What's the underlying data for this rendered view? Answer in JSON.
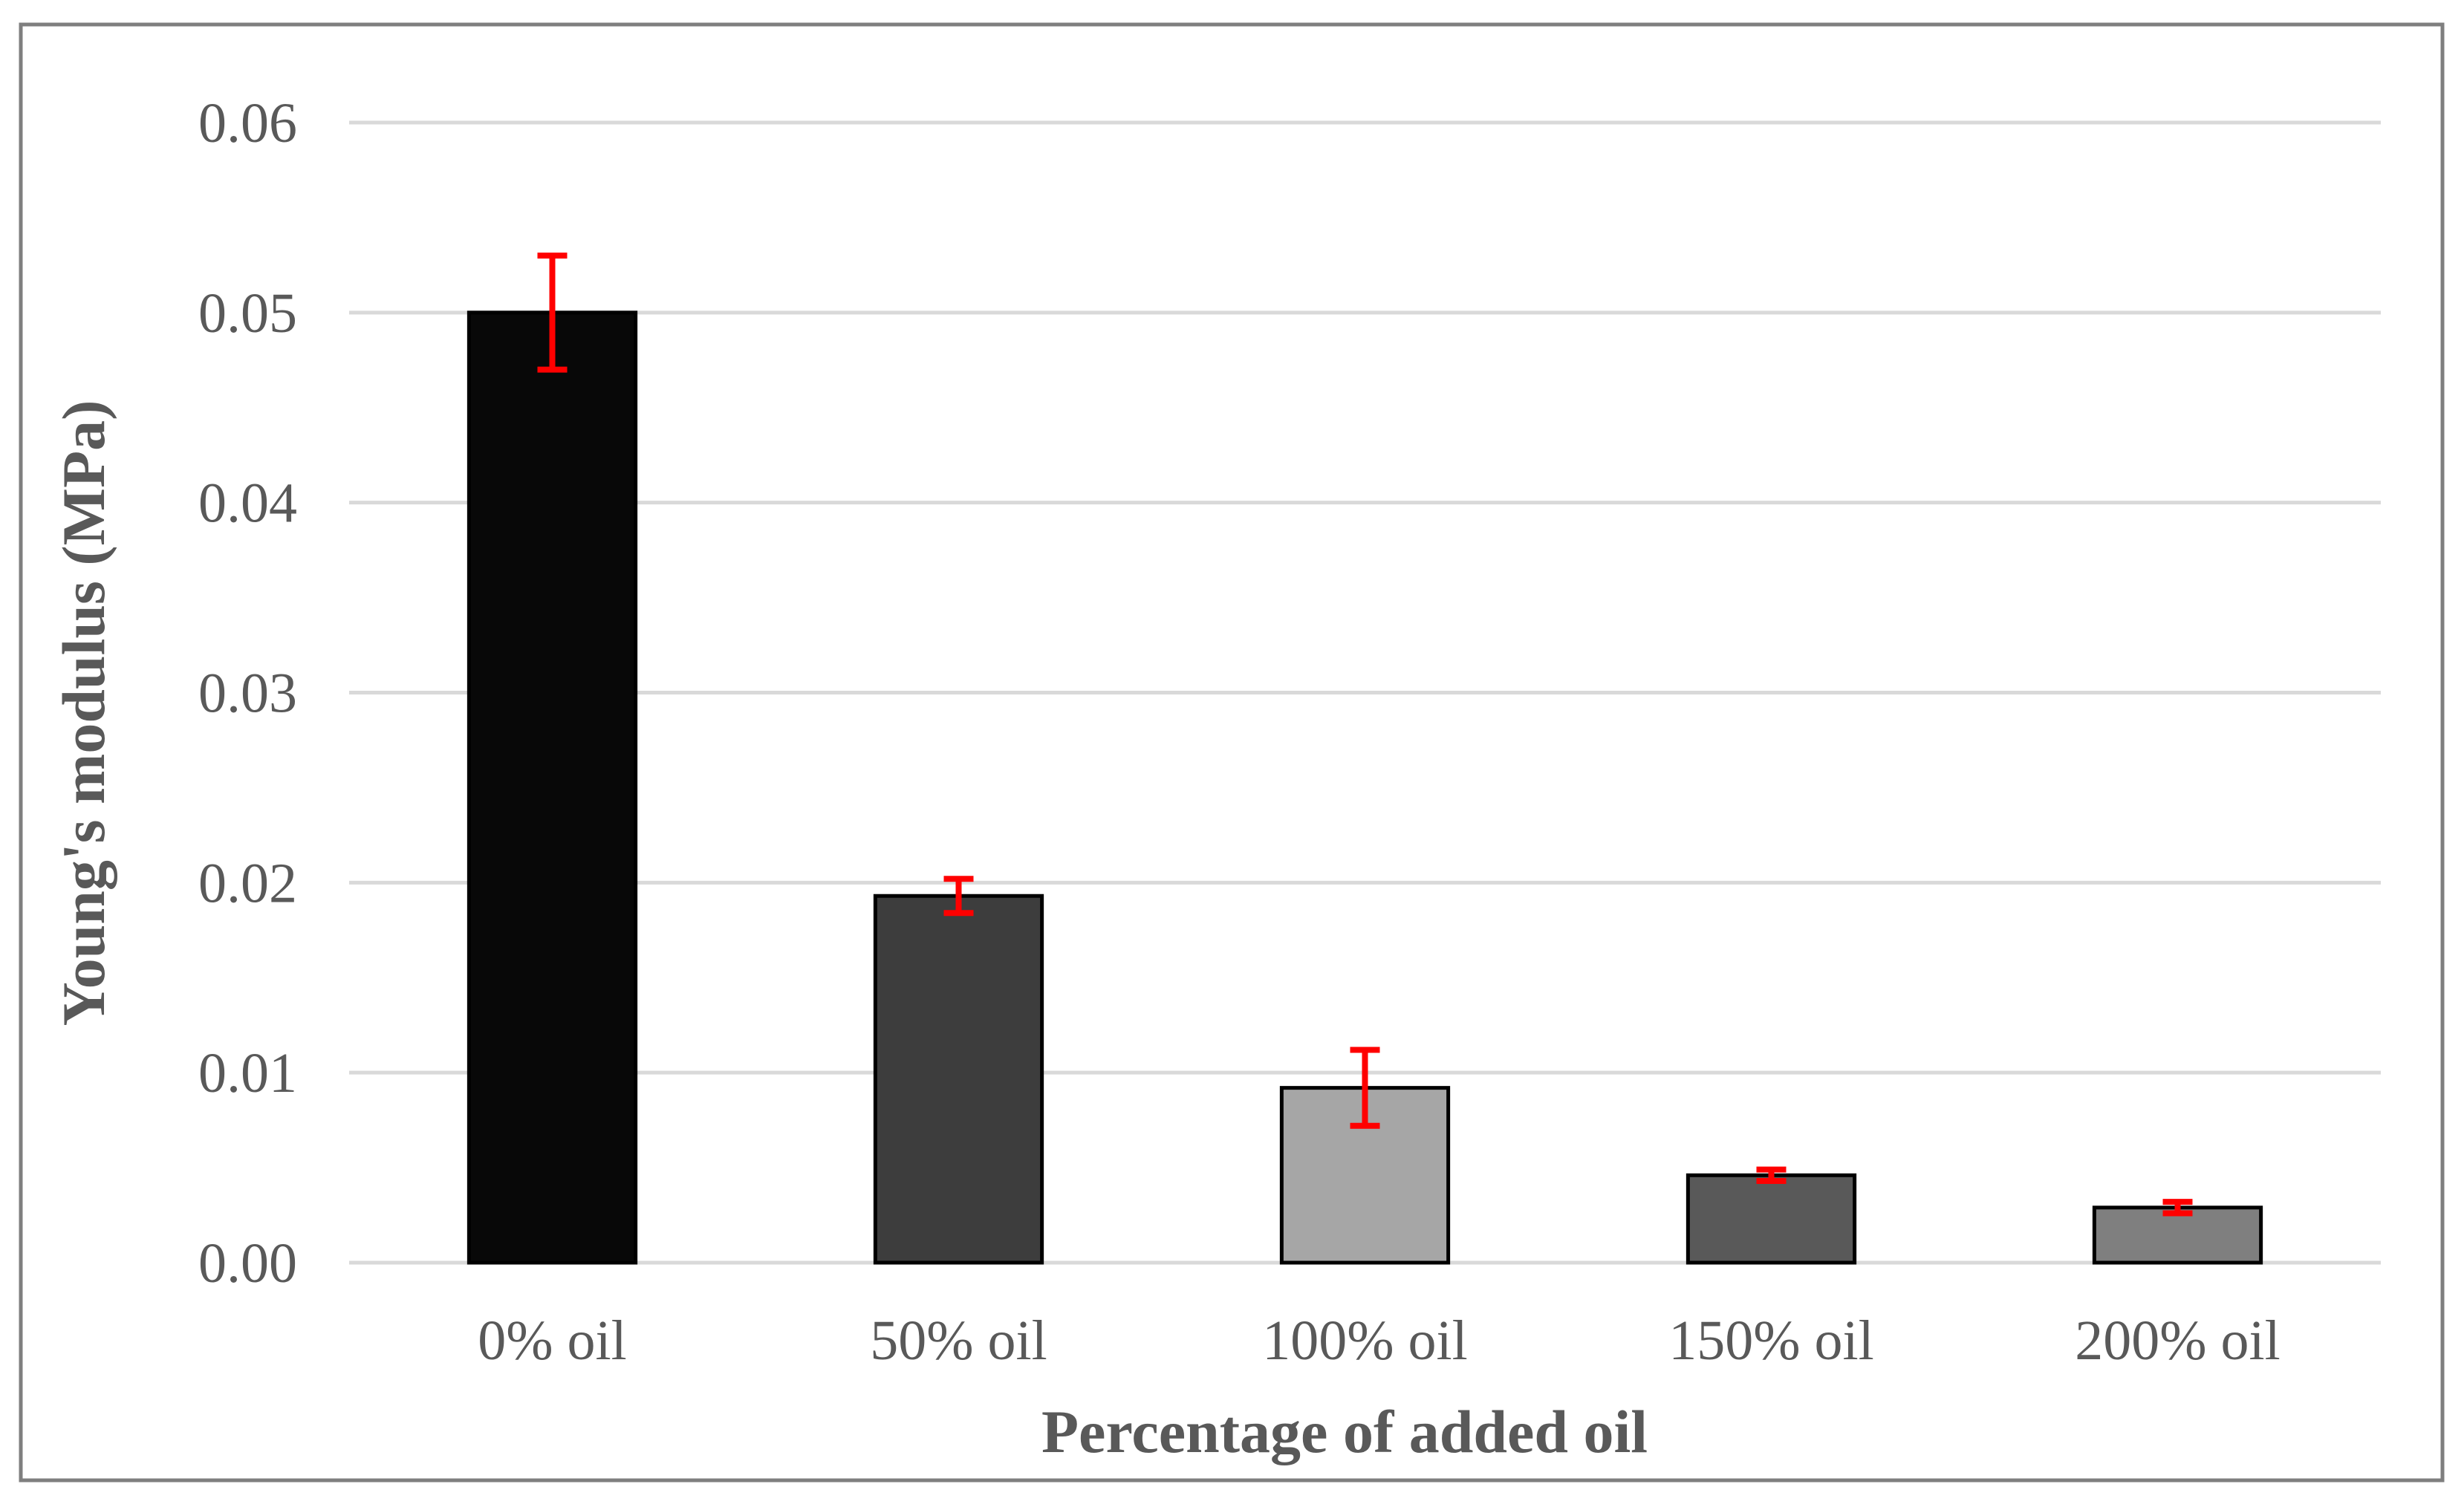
{
  "chart_data": {
    "type": "bar",
    "title": "",
    "xlabel": "Percentage of added oil",
    "ylabel": "Young's modulus (MPa)",
    "categories": [
      "0% oil",
      "50% oil",
      "100% oil",
      "150% oil",
      "200% oil"
    ],
    "values": [
      0.05,
      0.0193,
      0.0092,
      0.0046,
      0.0029
    ],
    "error": [
      0.003,
      0.0009,
      0.002,
      0.0003,
      0.0003
    ],
    "ylim": [
      0,
      0.06
    ],
    "yticks": [
      "0.00",
      "0.01",
      "0.02",
      "0.03",
      "0.04",
      "0.05",
      "0.06"
    ],
    "grid": true,
    "legend": "none",
    "colors": {
      "bars": [
        "#080808",
        "#3d3d3d",
        "#a6a6a6",
        "#595959",
        "#7f7f7f"
      ],
      "bar_outline": "#000000",
      "error_bars": "#ff0000",
      "grid": "#d9d9d9",
      "text": "#595959",
      "frame": "#7f7f7f"
    }
  }
}
